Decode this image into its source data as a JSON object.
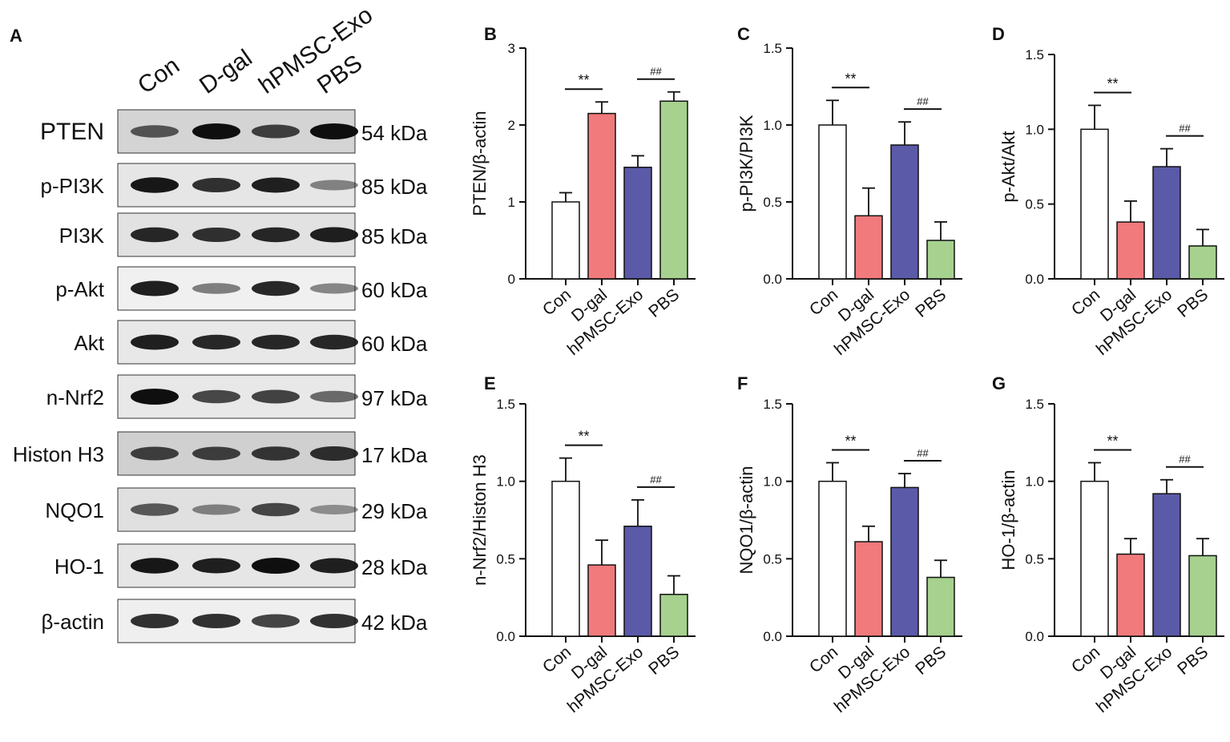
{
  "panels": [
    {
      "letter": "A"
    },
    {
      "letter": "B"
    },
    {
      "letter": "C"
    },
    {
      "letter": "D"
    },
    {
      "letter": "E"
    },
    {
      "letter": "F"
    },
    {
      "letter": "G"
    }
  ],
  "blot": {
    "lanes": [
      "Con",
      "D-gal",
      "hPMSC-Exo",
      "PBS"
    ],
    "proteins": [
      {
        "name": "PTEN",
        "kda": "54 kDa",
        "band_intensity": [
          0.55,
          1.0,
          0.7,
          1.0
        ],
        "bg": "#d4d4d4"
      },
      {
        "name": "p-PI3K",
        "kda": "85 kDa",
        "band_intensity": [
          0.95,
          0.8,
          0.9,
          0.3
        ],
        "bg": "#e6e6e6"
      },
      {
        "name": "PI3K",
        "kda": "85 kDa",
        "band_intensity": [
          0.85,
          0.8,
          0.85,
          0.9
        ],
        "bg": "#e2e2e2"
      },
      {
        "name": "p-Akt",
        "kda": "60 kDa",
        "band_intensity": [
          0.9,
          0.35,
          0.85,
          0.3
        ],
        "bg": "#f0f0f0"
      },
      {
        "name": "Akt",
        "kda": "60 kDa",
        "band_intensity": [
          0.9,
          0.85,
          0.85,
          0.85
        ],
        "bg": "#e8e8e8"
      },
      {
        "name": "n-Nrf2",
        "kda": "97 kDa",
        "band_intensity": [
          1.0,
          0.65,
          0.7,
          0.45
        ],
        "bg": "#e8e8e8"
      },
      {
        "name": "Histon H3",
        "kda": "17 kDa",
        "band_intensity": [
          0.7,
          0.7,
          0.75,
          0.8
        ],
        "bg": "#d0d0d0"
      },
      {
        "name": "NQO1",
        "kda": "29 kDa",
        "band_intensity": [
          0.55,
          0.3,
          0.65,
          0.2
        ],
        "bg": "#e0e0e0"
      },
      {
        "name": "HO-1",
        "kda": "28 kDa",
        "band_intensity": [
          0.95,
          0.9,
          1.0,
          0.9
        ],
        "bg": "#e6e6e6"
      },
      {
        "name": "β-actin",
        "kda": "42 kDa",
        "band_intensity": [
          0.8,
          0.8,
          0.7,
          0.8
        ],
        "bg": "#efefef"
      }
    ]
  },
  "colors": {
    "Con": "#ffffff",
    "D-gal": "#f07a7c",
    "hPMSC-Exo": "#5a5aa8",
    "PBS": "#a6d18e"
  },
  "chart_data": [
    {
      "panel": "B",
      "type": "bar",
      "categories": [
        "Con",
        "D-gal",
        "hPMSC-Exo",
        "PBS"
      ],
      "values": [
        1.0,
        2.15,
        1.45,
        2.31
      ],
      "errors": [
        0.12,
        0.15,
        0.15,
        0.12
      ],
      "ylabel": "PTEN/β-actin",
      "ylim": [
        0,
        3
      ],
      "yticks": [
        "0",
        "1",
        "2",
        "3"
      ],
      "sig": [
        {
          "label": "**",
          "between": [
            0,
            1
          ]
        },
        {
          "label": "##",
          "between": [
            2,
            3
          ]
        }
      ]
    },
    {
      "panel": "C",
      "type": "bar",
      "categories": [
        "Con",
        "D-gal",
        "hPMSC-Exo",
        "PBS"
      ],
      "values": [
        1.0,
        0.41,
        0.87,
        0.25
      ],
      "errors": [
        0.16,
        0.18,
        0.15,
        0.12
      ],
      "ylabel": "p-PI3K/PI3K",
      "ylim": [
        0,
        1.5
      ],
      "yticks": [
        "0.0",
        "0.5",
        "1.0",
        "1.5"
      ],
      "sig": [
        {
          "label": "**",
          "between": [
            0,
            1
          ]
        },
        {
          "label": "##",
          "between": [
            2,
            3
          ]
        }
      ]
    },
    {
      "panel": "D",
      "type": "bar",
      "categories": [
        "Con",
        "D-gal",
        "hPMSC-Exo",
        "PBS"
      ],
      "values": [
        1.0,
        0.38,
        0.75,
        0.22
      ],
      "errors": [
        0.16,
        0.14,
        0.12,
        0.11
      ],
      "ylabel": "p-Akt/Akt",
      "ylim": [
        0,
        1.5
      ],
      "yticks": [
        "0.0",
        "0.5",
        "1.0",
        "1.5"
      ],
      "sig": [
        {
          "label": "**",
          "between": [
            0,
            1
          ]
        },
        {
          "label": "##",
          "between": [
            2,
            3
          ]
        }
      ]
    },
    {
      "panel": "E",
      "type": "bar",
      "categories": [
        "Con",
        "D-gal",
        "hPMSC-Exo",
        "PBS"
      ],
      "values": [
        1.0,
        0.46,
        0.71,
        0.27
      ],
      "errors": [
        0.15,
        0.16,
        0.17,
        0.12
      ],
      "ylabel": "n-Nrf2/Histon H3",
      "ylim": [
        0,
        1.5
      ],
      "yticks": [
        "0.0",
        "0.5",
        "1.0",
        "1.5"
      ],
      "sig": [
        {
          "label": "**",
          "between": [
            0,
            1
          ]
        },
        {
          "label": "##",
          "between": [
            2,
            3
          ]
        }
      ]
    },
    {
      "panel": "F",
      "type": "bar",
      "categories": [
        "Con",
        "D-gal",
        "hPMSC-Exo",
        "PBS"
      ],
      "values": [
        1.0,
        0.61,
        0.96,
        0.38
      ],
      "errors": [
        0.12,
        0.1,
        0.09,
        0.11
      ],
      "ylabel": "NQO1/β-actin",
      "ylim": [
        0,
        1.5
      ],
      "yticks": [
        "0.0",
        "0.5",
        "1.0",
        "1.5"
      ],
      "sig": [
        {
          "label": "**",
          "between": [
            0,
            1
          ]
        },
        {
          "label": "##",
          "between": [
            2,
            3
          ]
        }
      ]
    },
    {
      "panel": "G",
      "type": "bar",
      "categories": [
        "Con",
        "D-gal",
        "hPMSC-Exo",
        "PBS"
      ],
      "values": [
        1.0,
        0.53,
        0.92,
        0.52
      ],
      "errors": [
        0.12,
        0.1,
        0.09,
        0.11
      ],
      "ylabel": "HO-1/β-actin",
      "ylim": [
        0,
        1.5
      ],
      "yticks": [
        "0.0",
        "0.5",
        "1.0",
        "1.5"
      ],
      "sig": [
        {
          "label": "**",
          "between": [
            0,
            1
          ]
        },
        {
          "label": "##",
          "between": [
            2,
            3
          ]
        }
      ]
    }
  ]
}
